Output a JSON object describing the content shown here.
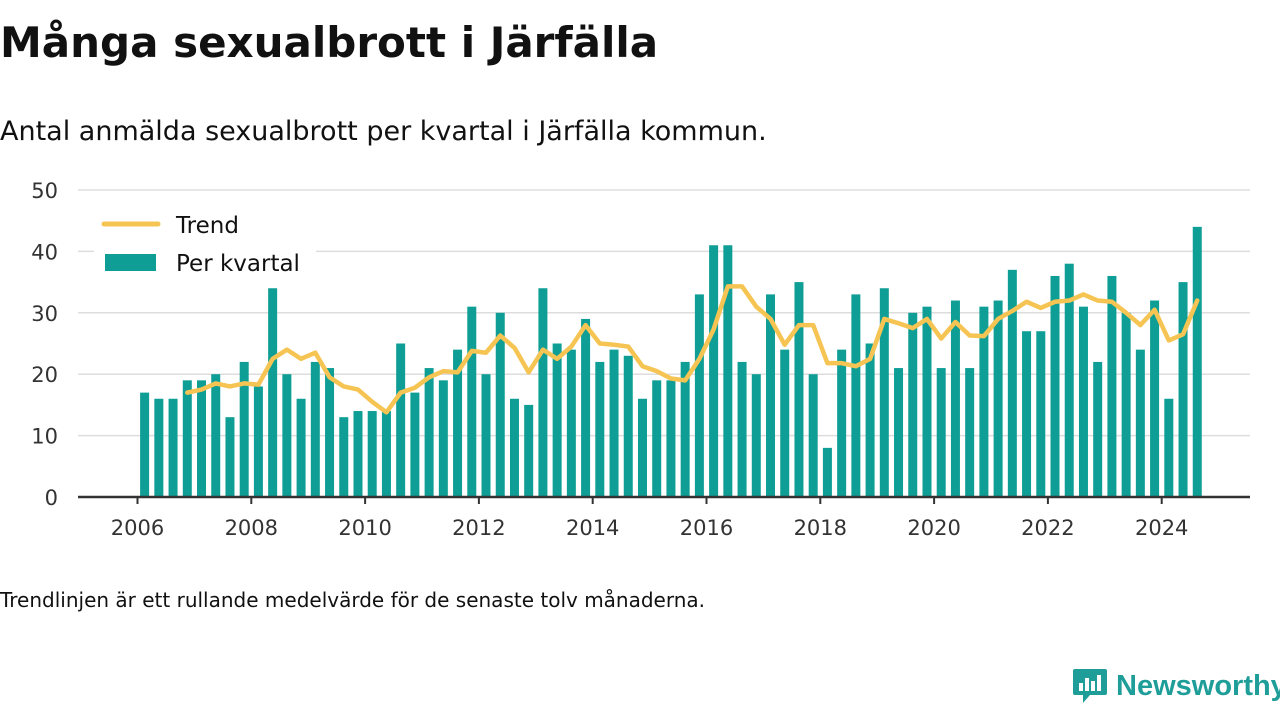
{
  "header": {
    "title": "Många sexualbrott i Järfälla",
    "subtitle": "Antal anmälda sexualbrott per kvartal i Järfälla kommun."
  },
  "footnote": "Trendlinjen är ett rullande medelvärde för de senaste tolv månaderna.",
  "brand": {
    "name": "Newsworthy",
    "icon": "newsworthy-logo-icon",
    "color": "#1f9e99"
  },
  "colors": {
    "bar": "#0e9e95",
    "trend": "#f6c453",
    "grid": "#dddddd",
    "axis": "#333333"
  },
  "chart_data": {
    "type": "bar",
    "legend_placement": "top-left",
    "grid": true,
    "ylim": [
      0,
      50
    ],
    "yticks": [
      0,
      10,
      20,
      30,
      40,
      50
    ],
    "xticks": [
      "2006",
      "2008",
      "2010",
      "2012",
      "2014",
      "2016",
      "2018",
      "2020",
      "2022",
      "2024"
    ],
    "categories": [
      "2006 Q1",
      "2006 Q2",
      "2006 Q3",
      "2006 Q4",
      "2007 Q1",
      "2007 Q2",
      "2007 Q3",
      "2007 Q4",
      "2008 Q1",
      "2008 Q2",
      "2008 Q3",
      "2008 Q4",
      "2009 Q1",
      "2009 Q2",
      "2009 Q3",
      "2009 Q4",
      "2010 Q1",
      "2010 Q2",
      "2010 Q3",
      "2010 Q4",
      "2011 Q1",
      "2011 Q2",
      "2011 Q3",
      "2011 Q4",
      "2012 Q1",
      "2012 Q2",
      "2012 Q3",
      "2012 Q4",
      "2013 Q1",
      "2013 Q2",
      "2013 Q3",
      "2013 Q4",
      "2014 Q1",
      "2014 Q2",
      "2014 Q3",
      "2014 Q4",
      "2015 Q1",
      "2015 Q2",
      "2015 Q3",
      "2015 Q4",
      "2016 Q1",
      "2016 Q2",
      "2016 Q3",
      "2016 Q4",
      "2017 Q1",
      "2017 Q2",
      "2017 Q3",
      "2017 Q4",
      "2018 Q1",
      "2018 Q2",
      "2018 Q3",
      "2018 Q4",
      "2019 Q1",
      "2019 Q2",
      "2019 Q3",
      "2019 Q4",
      "2020 Q1",
      "2020 Q2",
      "2020 Q3",
      "2020 Q4",
      "2021 Q1",
      "2021 Q2",
      "2021 Q3",
      "2021 Q4",
      "2022 Q1",
      "2022 Q2",
      "2022 Q3",
      "2022 Q4",
      "2023 Q1",
      "2023 Q2",
      "2023 Q3",
      "2023 Q4",
      "2024 Q1",
      "2024 Q2",
      "2024 Q3"
    ],
    "series": [
      {
        "name": "Per kvartal",
        "type": "bar",
        "values": [
          17,
          16,
          16,
          19,
          19,
          20,
          13,
          22,
          18,
          34,
          20,
          16,
          22,
          21,
          13,
          14,
          14,
          14,
          25,
          17,
          21,
          19,
          24,
          31,
          20,
          30,
          16,
          15,
          34,
          25,
          24,
          29,
          22,
          24,
          23,
          16,
          19,
          19,
          22,
          33,
          41,
          41,
          22,
          20,
          33,
          24,
          35,
          20,
          8,
          24,
          33,
          25,
          34,
          21,
          30,
          31,
          21,
          32,
          21,
          31,
          32,
          37,
          27,
          27,
          36,
          38,
          31,
          22,
          36,
          30,
          24,
          32,
          16,
          35,
          44
        ]
      },
      {
        "name": "Trend",
        "type": "line",
        "values": [
          null,
          null,
          null,
          17,
          17.5,
          18.5,
          18,
          18.5,
          18.3,
          22.5,
          24,
          22.5,
          23.5,
          19.5,
          18,
          17.5,
          15.5,
          13.8,
          17,
          17.8,
          19.5,
          20.5,
          20.3,
          23.8,
          23.5,
          26.3,
          24.3,
          20.3,
          24,
          22.5,
          24.5,
          28,
          25,
          24.8,
          24.5,
          21.3,
          20.5,
          19.3,
          19,
          22.5,
          27.3,
          34.3,
          34.3,
          31,
          29,
          24.8,
          28,
          28,
          21.8,
          21.8,
          21.3,
          22.5,
          29,
          28.3,
          27.5,
          29,
          25.8,
          28.5,
          26.3,
          26.2,
          29,
          30.3,
          31.8,
          30.8,
          31.8,
          32,
          33,
          32,
          31.8,
          30,
          28,
          30.5,
          25.5,
          26.5,
          32
        ]
      }
    ]
  }
}
